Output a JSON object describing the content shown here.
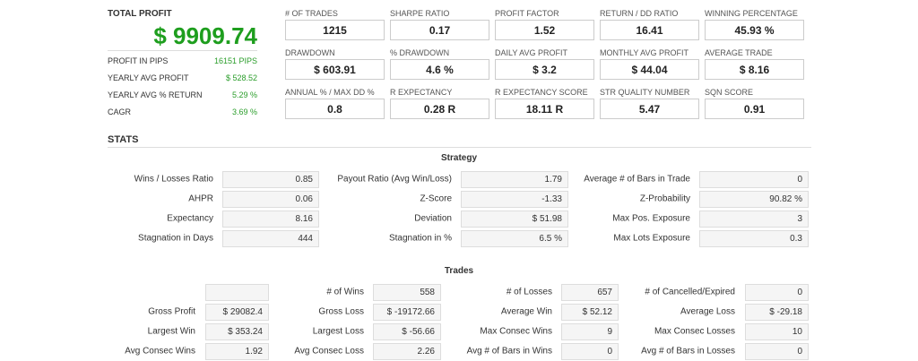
{
  "summary": {
    "title": "TOTAL PROFIT",
    "value": "$ 9909.74",
    "rows": [
      {
        "label": "PROFIT IN PIPS",
        "value": "16151 PIPS"
      },
      {
        "label": "YEARLY AVG PROFIT",
        "value": "$ 528.52"
      },
      {
        "label": "YEARLY AVG % RETURN",
        "value": "5.29 %"
      },
      {
        "label": "CAGR",
        "value": "3.69 %"
      }
    ]
  },
  "metrics": [
    {
      "label": "# OF TRADES",
      "value": "1215"
    },
    {
      "label": "SHARPE RATIO",
      "value": "0.17"
    },
    {
      "label": "PROFIT FACTOR",
      "value": "1.52"
    },
    {
      "label": "RETURN / DD RATIO",
      "value": "16.41"
    },
    {
      "label": "WINNING PERCENTAGE",
      "value": "45.93 %"
    },
    {
      "label": "DRAWDOWN",
      "value": "$ 603.91"
    },
    {
      "label": "% DRAWDOWN",
      "value": "4.6 %"
    },
    {
      "label": "DAILY AVG PROFIT",
      "value": "$ 3.2"
    },
    {
      "label": "MONTHLY AVG PROFIT",
      "value": "$ 44.04"
    },
    {
      "label": "AVERAGE TRADE",
      "value": "$ 8.16"
    },
    {
      "label": "ANNUAL % / MAX DD %",
      "value": "0.8"
    },
    {
      "label": "R EXPECTANCY",
      "value": "0.28 R"
    },
    {
      "label": "R EXPECTANCY SCORE",
      "value": "18.11 R"
    },
    {
      "label": "STR QUALITY NUMBER",
      "value": "5.47"
    },
    {
      "label": "SQN SCORE",
      "value": "0.91"
    }
  ],
  "stats_title": "STATS",
  "strategy": {
    "title": "Strategy",
    "rows": [
      [
        {
          "label": "Wins / Losses Ratio",
          "value": "0.85"
        },
        {
          "label": "Payout Ratio (Avg Win/Loss)",
          "value": "1.79"
        },
        {
          "label": "Average # of Bars in Trade",
          "value": "0"
        }
      ],
      [
        {
          "label": "AHPR",
          "value": "0.06"
        },
        {
          "label": "Z-Score",
          "value": "-1.33"
        },
        {
          "label": "Z-Probability",
          "value": "90.82 %"
        }
      ],
      [
        {
          "label": "Expectancy",
          "value": "8.16"
        },
        {
          "label": "Deviation",
          "value": "$ 51.98"
        },
        {
          "label": "Max Pos. Exposure",
          "value": "3"
        }
      ],
      [
        {
          "label": "Stagnation in Days",
          "value": "444"
        },
        {
          "label": "Stagnation in %",
          "value": "6.5 %"
        },
        {
          "label": "Max Lots Exposure",
          "value": "0.3"
        }
      ]
    ]
  },
  "trades": {
    "title": "Trades",
    "rows": [
      [
        {
          "label": "# of Wins",
          "value": "558"
        },
        {
          "label": "# of Losses",
          "value": "657"
        },
        {
          "label": "# of Cancelled/Expired",
          "value": "0"
        }
      ],
      [
        {
          "label": "Gross Profit",
          "value": "$ 29082.4"
        },
        {
          "label": "Gross Loss",
          "value": "$ -19172.66"
        },
        {
          "label": "Average Win",
          "value": "$ 52.12"
        },
        {
          "label": "Average Loss",
          "value": "$ -29.18"
        }
      ],
      [
        {
          "label": "Largest Win",
          "value": "$ 353.24"
        },
        {
          "label": "Largest Loss",
          "value": "$ -56.66"
        },
        {
          "label": "Max Consec Wins",
          "value": "9"
        },
        {
          "label": "Max Consec Losses",
          "value": "10"
        }
      ],
      [
        {
          "label": "Avg Consec Wins",
          "value": "1.92"
        },
        {
          "label": "Avg Consec Loss",
          "value": "2.26"
        },
        {
          "label": "Avg # of Bars in Wins",
          "value": "0"
        },
        {
          "label": "Avg # of Bars in Losses",
          "value": "0"
        }
      ]
    ]
  }
}
